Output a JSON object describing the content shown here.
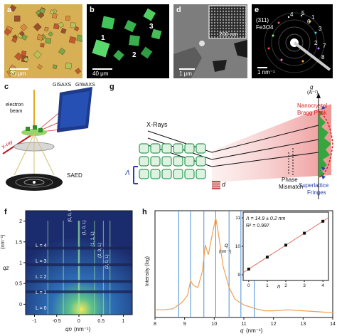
{
  "panels": {
    "a": {
      "label": "a",
      "scale_text": "20 μm"
    },
    "b": {
      "label": "b",
      "scale_text": "40 μm",
      "crystal_labels": [
        "1",
        "2",
        "3"
      ]
    },
    "d": {
      "label": "d",
      "scale_text": "1 μm",
      "inset_scale_text": "200 nm"
    },
    "e": {
      "label": "e",
      "annotation_line1": "(311)",
      "annotation_line2": "Fe3O4",
      "scale_text": "1 nm⁻¹",
      "spot_labels": [
        "1",
        "2",
        "3",
        "4",
        "5",
        "6",
        "7",
        "8"
      ]
    },
    "c": {
      "label": "c",
      "text_gisaxs": "GISAXS",
      "text_giwaxs": "GIWAXS",
      "text_electron": "electron",
      "text_beam": "beam",
      "text_xray": "X-ray",
      "text_saed": "SAED"
    },
    "g": {
      "label": "g",
      "text_xrays": "X-Rays",
      "text_lambda": "Λ",
      "text_d": "d",
      "text_phase": "Phase",
      "text_mismatch": "Mismatch",
      "text_nano1": "Nanocrystal",
      "text_nano2": "Bragg Peak",
      "text_super1": "Superlattice",
      "text_super2": "Fringes",
      "axis_q": "q",
      "axis_q_unit": "(Å⁻¹)"
    },
    "f": {
      "label": "f",
      "xlabel_main": "qn",
      "xlabel_unit": "(nm⁻¹)",
      "ylabel_main": "qz",
      "ylabel_unit": "(nm⁻¹)",
      "xticks": [
        "-1",
        "-0.5",
        "0",
        "0.5",
        "1"
      ],
      "yticks": [
        "0",
        "0.5",
        "1",
        "1.5",
        "2"
      ],
      "layer_labels": [
        "L = 0",
        "L = 1",
        "L = 2",
        "L = 3",
        "L = 4"
      ],
      "rod_labels": [
        "(0, 0, L)",
        "(1, 0, L)",
        "(1, 1, L)",
        "(2, 0, L)",
        "(2, 0, L)"
      ]
    },
    "h": {
      "label": "h",
      "xlabel_main": "q",
      "xlabel_unit": "(nm⁻¹)",
      "ylabel": "Intensity (log)",
      "xticks": [
        "8",
        "9",
        "10",
        "11",
        "12",
        "13",
        "14"
      ],
      "inset_eq1": "Λ = 14.9 ± 0.2 nm",
      "inset_eq2": "R² = 0.997",
      "inset_xlabel": "n",
      "inset_ylabel_main": "q",
      "inset_ylabel_unit": "(nm⁻¹)",
      "inset_xticks": [
        "0",
        "1",
        "2",
        "3",
        "4"
      ],
      "inset_yticks": [
        "9",
        "10",
        "11"
      ]
    }
  },
  "chart_data": [
    {
      "type": "line",
      "title": "",
      "xlabel": "q (nm⁻¹)",
      "ylabel": "Intensity (log)",
      "xlim": [
        8,
        14
      ],
      "series": [
        {
          "x": [
            8.0,
            8.3,
            8.6,
            8.8,
            8.95,
            9.1,
            9.2,
            9.3,
            9.45,
            9.6,
            9.7,
            9.8,
            9.95,
            10.05,
            10.15,
            10.3,
            10.5,
            10.7,
            10.9,
            11.0,
            11.2,
            11.4,
            11.7,
            12.0,
            12.5,
            13.0,
            13.5,
            14.0
          ],
          "y": [
            0.05,
            0.05,
            0.06,
            0.1,
            0.14,
            0.2,
            0.35,
            0.3,
            0.28,
            0.45,
            0.72,
            0.62,
            0.85,
            1.0,
            0.82,
            0.5,
            0.28,
            0.16,
            0.12,
            0.1,
            0.08,
            0.06,
            0.04,
            0.04,
            0.05,
            0.04,
            0.03,
            0.02
          ]
        }
      ],
      "reference_lines_x": [
        8.8,
        9.2,
        9.65,
        10.05,
        10.5,
        10.9,
        11.35
      ]
    },
    {
      "type": "scatter",
      "title": "",
      "xlabel": "n",
      "ylabel": "q (nm⁻¹)",
      "xlim": [
        -0.3,
        4.3
      ],
      "ylim": [
        8.8,
        11.2
      ],
      "series": [
        {
          "x": [
            0,
            1,
            2,
            3,
            4
          ],
          "y": [
            9.2,
            9.62,
            10.04,
            10.46,
            10.88
          ]
        }
      ],
      "fit": {
        "slope": 0.42,
        "intercept": 9.2
      }
    }
  ]
}
